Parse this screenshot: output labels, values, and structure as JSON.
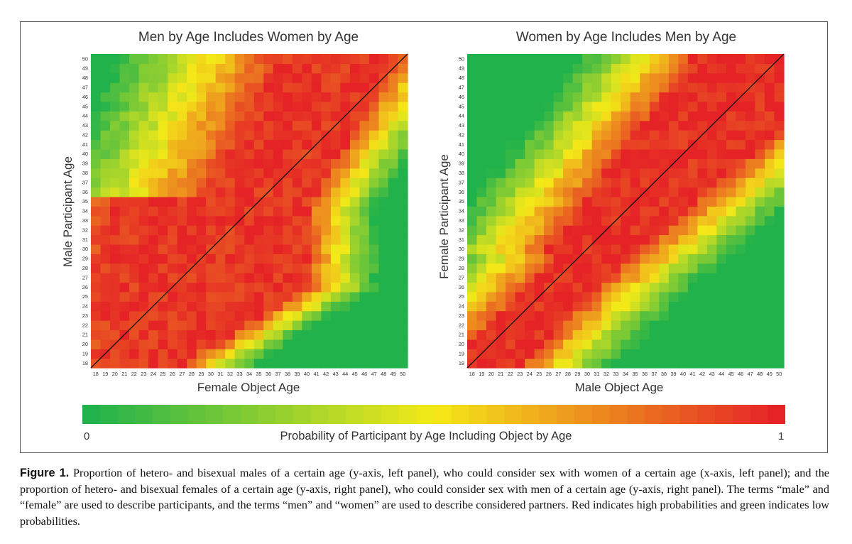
{
  "colors": {
    "low": "#21b24b",
    "mid": "#f4e918",
    "high": "#e52226"
  },
  "chart_data": [
    {
      "type": "heatmap",
      "title": "Men by Age Includes Women by Age",
      "xlabel": "Female Object Age",
      "ylabel": "Male Participant Age",
      "x_ticks": [
        18,
        19,
        20,
        21,
        22,
        23,
        24,
        25,
        26,
        27,
        28,
        29,
        30,
        31,
        32,
        33,
        34,
        35,
        36,
        37,
        38,
        39,
        40,
        41,
        42,
        43,
        44,
        45,
        46,
        47,
        48,
        49,
        50
      ],
      "y_ticks": [
        18,
        19,
        20,
        21,
        22,
        23,
        24,
        25,
        26,
        27,
        28,
        29,
        30,
        31,
        32,
        33,
        34,
        35,
        36,
        37,
        38,
        39,
        40,
        41,
        42,
        43,
        44,
        45,
        46,
        47,
        48,
        49,
        50
      ],
      "diagonal_line": true,
      "value_scale": [
        0,
        1
      ],
      "approx_pattern": "Probability peaks at object ages between about 18 and the participant's own age, extending to roughly 40 for participants aged 26-35; for participants over 36 the high band covers object ages about 30-45; ages 18-22 near 0 for older participants"
    },
    {
      "type": "heatmap",
      "title": "Women by Age Includes Men by Age",
      "xlabel": "Male Object Age",
      "ylabel": "Female Participant Age",
      "x_ticks": [
        18,
        19,
        20,
        21,
        22,
        23,
        24,
        25,
        26,
        27,
        28,
        29,
        30,
        31,
        32,
        33,
        34,
        35,
        36,
        37,
        38,
        39,
        40,
        41,
        42,
        43,
        44,
        45,
        46,
        47,
        48,
        49,
        50
      ],
      "y_ticks": [
        18,
        19,
        20,
        21,
        22,
        23,
        24,
        25,
        26,
        27,
        28,
        29,
        30,
        31,
        32,
        33,
        34,
        35,
        36,
        37,
        38,
        39,
        40,
        41,
        42,
        43,
        44,
        45,
        46,
        47,
        48,
        49,
        50
      ],
      "diagonal_line": true,
      "value_scale": [
        0,
        1
      ],
      "approx_pattern": "High probability band centred on the diagonal, extending a few years below and about 5-10 years above the participant's own age; low probability far from the diagonal"
    }
  ],
  "colorbar": {
    "min_label": "0",
    "max_label": "1",
    "title": "Probability of Participant by Age Including Object by Age"
  },
  "caption": {
    "label": "Figure 1.",
    "text": " Proportion of hetero- and bisexual males of a certain age (y-axis, left panel), who could consider sex with women of a certain age (x-axis, left panel); and the proportion of hetero- and bisexual females of a certain age (y-axis, right panel), who could consider sex with men of a certain age (y-axis, right panel). The terms “male” and “female” are used to describe participants, and the terms “men” and “women” are used to describe considered partners. Red indicates high probabilities and green indicates low probabilities."
  }
}
